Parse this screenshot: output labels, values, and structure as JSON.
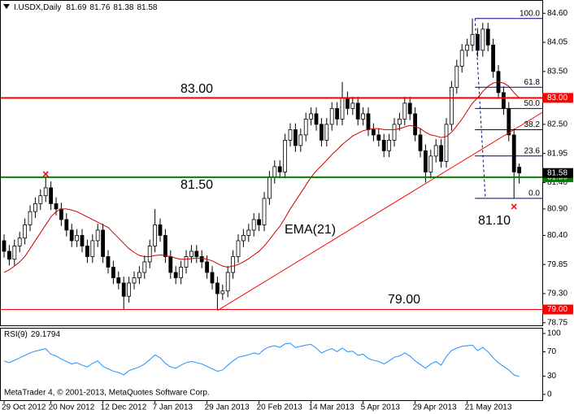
{
  "chart_data": {
    "type": "candlestick",
    "symbol": "I.USDX,Daily",
    "ylim": [
      78.7,
      84.82
    ],
    "yticks": [
      {
        "value": 84.6,
        "label": "84.60"
      },
      84.05,
      {
        "value": 83.5,
        "label": "83.50"
      },
      {
        "value": 82.5,
        "label": "82.50"
      },
      81.95,
      {
        "value": 81.4,
        "label": "81.40"
      },
      {
        "value": 80.9,
        "label": "80.90"
      },
      {
        "value": 80.4,
        "label": "80.40"
      },
      79.85,
      {
        "value": 79.3,
        "label": "79.30"
      },
      78.75
    ],
    "xticks": [
      {
        "value": 0,
        "label": "29 Oct 2012"
      },
      {
        "value": 9,
        "label": "20 Nov 2012"
      },
      {
        "value": 19,
        "label": "12 Dec 2012"
      },
      {
        "value": 29,
        "label": "7 Jan 2013"
      },
      {
        "value": 39,
        "label": "29 Jan 2013"
      },
      {
        "value": 49,
        "label": "20 Feb 2013"
      },
      {
        "value": 59,
        "label": "14 Mar 2013"
      },
      {
        "value": 69,
        "label": "5 Apr 2013"
      },
      {
        "value": 79,
        "label": "29 Apr 2013"
      },
      {
        "value": 89,
        "label": "21 May 2013"
      }
    ],
    "bull_color": "#ffffff",
    "bear_color": "#000000",
    "open": [
      80.3,
      80.1,
      79.95,
      80.2,
      80.35,
      80.6,
      80.85,
      81.0,
      81.15,
      81.3,
      81.0,
      80.9,
      80.7,
      80.5,
      80.3,
      80.4,
      80.2,
      80.0,
      80.3,
      80.5,
      80.0,
      79.8,
      79.6,
      79.5,
      79.25,
      79.5,
      79.6,
      79.7,
      79.9,
      80.2,
      80.6,
      80.4,
      80.0,
      79.7,
      79.6,
      79.8,
      80.0,
      80.1,
      80.0,
      79.9,
      79.7,
      79.5,
      79.3,
      79.35,
      79.7,
      80.0,
      80.3,
      80.4,
      80.5,
      80.7,
      80.6,
      81.1,
      81.5,
      81.7,
      81.6,
      82.2,
      82.4,
      82.1,
      82.3,
      82.6,
      82.7,
      82.5,
      82.2,
      82.5,
      82.8,
      82.6,
      83.0,
      82.8,
      82.9,
      82.6,
      82.7,
      82.4,
      82.3,
      82.2,
      82.0,
      82.2,
      82.5,
      82.6,
      82.9,
      82.7,
      82.3,
      82.0,
      81.6,
      81.9,
      82.1,
      81.8,
      82.5,
      83.2,
      83.6,
      83.9,
      84.0,
      84.2,
      83.9,
      84.3,
      84.0,
      83.5,
      83.1,
      82.8,
      82.3,
      81.69
    ],
    "high": [
      80.42,
      80.22,
      80.32,
      80.47,
      80.72,
      80.97,
      81.12,
      81.27,
      81.5,
      81.42,
      81.12,
      81.02,
      80.82,
      80.62,
      80.52,
      80.52,
      80.32,
      80.42,
      80.62,
      80.62,
      80.12,
      79.92,
      79.72,
      79.62,
      79.62,
      79.72,
      79.82,
      80.02,
      80.32,
      80.9,
      80.72,
      80.52,
      80.12,
      79.82,
      79.92,
      80.12,
      80.22,
      80.22,
      80.12,
      80.02,
      79.82,
      79.62,
      79.47,
      79.82,
      80.12,
      80.42,
      80.52,
      80.62,
      80.82,
      80.82,
      81.22,
      81.62,
      81.82,
      81.82,
      82.32,
      82.52,
      82.52,
      82.42,
      82.72,
      82.82,
      82.82,
      82.62,
      82.62,
      82.92,
      82.92,
      83.3,
      83.12,
      83.02,
      83.02,
      82.82,
      82.82,
      82.52,
      82.42,
      82.32,
      82.32,
      82.62,
      82.72,
      83.02,
      83.02,
      82.82,
      82.42,
      82.12,
      82.02,
      82.22,
      82.22,
      82.62,
      83.32,
      83.72,
      84.02,
      84.12,
      84.5,
      84.32,
      84.42,
      84.42,
      84.12,
      83.62,
      83.22,
      82.92,
      82.42,
      81.76
    ],
    "low": [
      79.98,
      79.83,
      79.83,
      80.08,
      80.23,
      80.48,
      80.73,
      80.88,
      81.03,
      80.88,
      80.78,
      80.58,
      80.38,
      80.18,
      80.18,
      80.08,
      79.88,
      79.88,
      80.18,
      79.88,
      79.68,
      79.48,
      79.38,
      79.0,
      79.13,
      79.38,
      79.48,
      79.58,
      79.78,
      80.08,
      80.28,
      79.88,
      79.58,
      79.48,
      79.48,
      79.68,
      79.88,
      79.88,
      79.78,
      79.58,
      79.38,
      79.0,
      79.18,
      79.23,
      79.58,
      79.88,
      80.18,
      80.28,
      80.38,
      80.48,
      80.48,
      80.98,
      81.38,
      81.48,
      81.48,
      82.08,
      81.98,
      81.98,
      82.18,
      82.48,
      82.38,
      82.08,
      82.08,
      82.38,
      82.48,
      82.48,
      82.68,
      82.68,
      82.48,
      82.48,
      82.28,
      82.18,
      82.08,
      81.88,
      81.88,
      82.08,
      82.38,
      82.48,
      82.58,
      82.18,
      81.88,
      81.4,
      81.48,
      81.78,
      81.68,
      81.68,
      82.38,
      83.08,
      83.48,
      83.78,
      83.88,
      83.78,
      83.78,
      83.88,
      83.38,
      82.98,
      82.68,
      82.18,
      81.1,
      81.38
    ],
    "close": [
      80.1,
      79.95,
      80.2,
      80.35,
      80.6,
      80.85,
      81.0,
      81.15,
      81.3,
      81.0,
      80.9,
      80.7,
      80.5,
      80.3,
      80.4,
      80.2,
      80.0,
      80.3,
      80.5,
      80.0,
      79.8,
      79.6,
      79.5,
      79.25,
      79.5,
      79.6,
      79.7,
      79.9,
      80.2,
      80.6,
      80.4,
      80.0,
      79.7,
      79.6,
      79.8,
      80.0,
      80.1,
      80.0,
      79.9,
      79.7,
      79.5,
      79.3,
      79.35,
      79.7,
      80.0,
      80.3,
      80.4,
      80.5,
      80.7,
      80.6,
      81.1,
      81.5,
      81.7,
      81.6,
      82.2,
      82.4,
      82.1,
      82.3,
      82.6,
      82.7,
      82.5,
      82.2,
      82.5,
      82.8,
      82.6,
      83.0,
      82.8,
      82.9,
      82.6,
      82.7,
      82.4,
      82.3,
      82.2,
      82.0,
      82.2,
      82.5,
      82.6,
      82.9,
      82.7,
      82.3,
      82.0,
      81.6,
      81.9,
      82.1,
      81.8,
      82.5,
      83.2,
      83.6,
      83.9,
      84.0,
      84.2,
      83.9,
      84.3,
      84.0,
      83.5,
      83.1,
      82.8,
      82.3,
      81.6,
      81.58
    ],
    "ema_color": "#cc0000",
    "ema": [
      79.7,
      79.75,
      79.82,
      79.9,
      80.0,
      80.15,
      80.3,
      80.45,
      80.6,
      80.75,
      80.85,
      80.9,
      80.9,
      80.88,
      80.85,
      80.8,
      80.75,
      80.7,
      80.65,
      80.6,
      80.55,
      80.45,
      80.35,
      80.25,
      80.15,
      80.08,
      80.02,
      80.0,
      80.0,
      80.02,
      80.03,
      80.02,
      80.0,
      79.97,
      79.95,
      79.95,
      79.96,
      79.97,
      79.97,
      79.95,
      79.92,
      79.87,
      79.82,
      79.8,
      79.82,
      79.85,
      79.9,
      79.96,
      80.03,
      80.1,
      80.2,
      80.32,
      80.45,
      80.57,
      80.73,
      80.9,
      81.05,
      81.2,
      81.35,
      81.5,
      81.62,
      81.72,
      81.82,
      81.93,
      82.02,
      82.12,
      82.2,
      82.28,
      82.33,
      82.38,
      82.4,
      82.42,
      82.42,
      82.4,
      82.4,
      82.4,
      82.42,
      82.45,
      82.48,
      82.46,
      82.42,
      82.35,
      82.3,
      82.28,
      82.25,
      82.27,
      82.35,
      82.47,
      82.6,
      82.75,
      82.9,
      83.0,
      83.12,
      83.22,
      83.28,
      83.3,
      83.28,
      83.22,
      83.1,
      83.0
    ],
    "hlines": [
      {
        "value": 83.0,
        "label": "83.00",
        "color": "#ff0000"
      },
      {
        "value": 81.5,
        "label": "81.50",
        "color": "#008000"
      },
      {
        "value": 79.0,
        "label": "79.00",
        "color": "#ff0000"
      }
    ],
    "trendline": {
      "x": [
        41,
        103.5
      ],
      "y": [
        78.98,
        82.73
      ],
      "color": "#ff0000"
    },
    "fibo": {
      "low": 81.1,
      "high": 84.5,
      "color": "#000080",
      "levels": [
        {
          "value": 100,
          "label": "100.0"
        },
        61.8,
        {
          "value": 50,
          "label": "50.0"
        },
        38.2,
        23.6,
        {
          "value": 0,
          "label": "0.0"
        }
      ]
    },
    "annotations": [
      "EMA(21)",
      "81.10"
    ],
    "rsi": {
      "name": "RSI(9)",
      "color": "#1e90ff",
      "ylim": [
        -9.5,
        108
      ],
      "yticks": [
        100,
        70,
        30,
        0
      ],
      "values": [
        55,
        52,
        56,
        60,
        64,
        68,
        71,
        73,
        75,
        66,
        63,
        58,
        54,
        50,
        52,
        48,
        45,
        51,
        55,
        46,
        42,
        38,
        36,
        32,
        39,
        42,
        45,
        50,
        57,
        65,
        60,
        51,
        45,
        43,
        48,
        52,
        54,
        52,
        50,
        46,
        42,
        38,
        40,
        48,
        55,
        61,
        63,
        65,
        68,
        66,
        74,
        78,
        80,
        77,
        83,
        84,
        77,
        79,
        81,
        82,
        76,
        68,
        72,
        75,
        70,
        76,
        70,
        71,
        64,
        66,
        59,
        56,
        54,
        50,
        55,
        61,
        63,
        68,
        63,
        55,
        49,
        43,
        50,
        54,
        48,
        62,
        72,
        76,
        79,
        80,
        81,
        72,
        77,
        70,
        60,
        52,
        46,
        40,
        32,
        29.1794
      ]
    },
    "footer": "MetaTrader 4, © 2001-2013, MetaQuotes Software Corp."
  }
}
